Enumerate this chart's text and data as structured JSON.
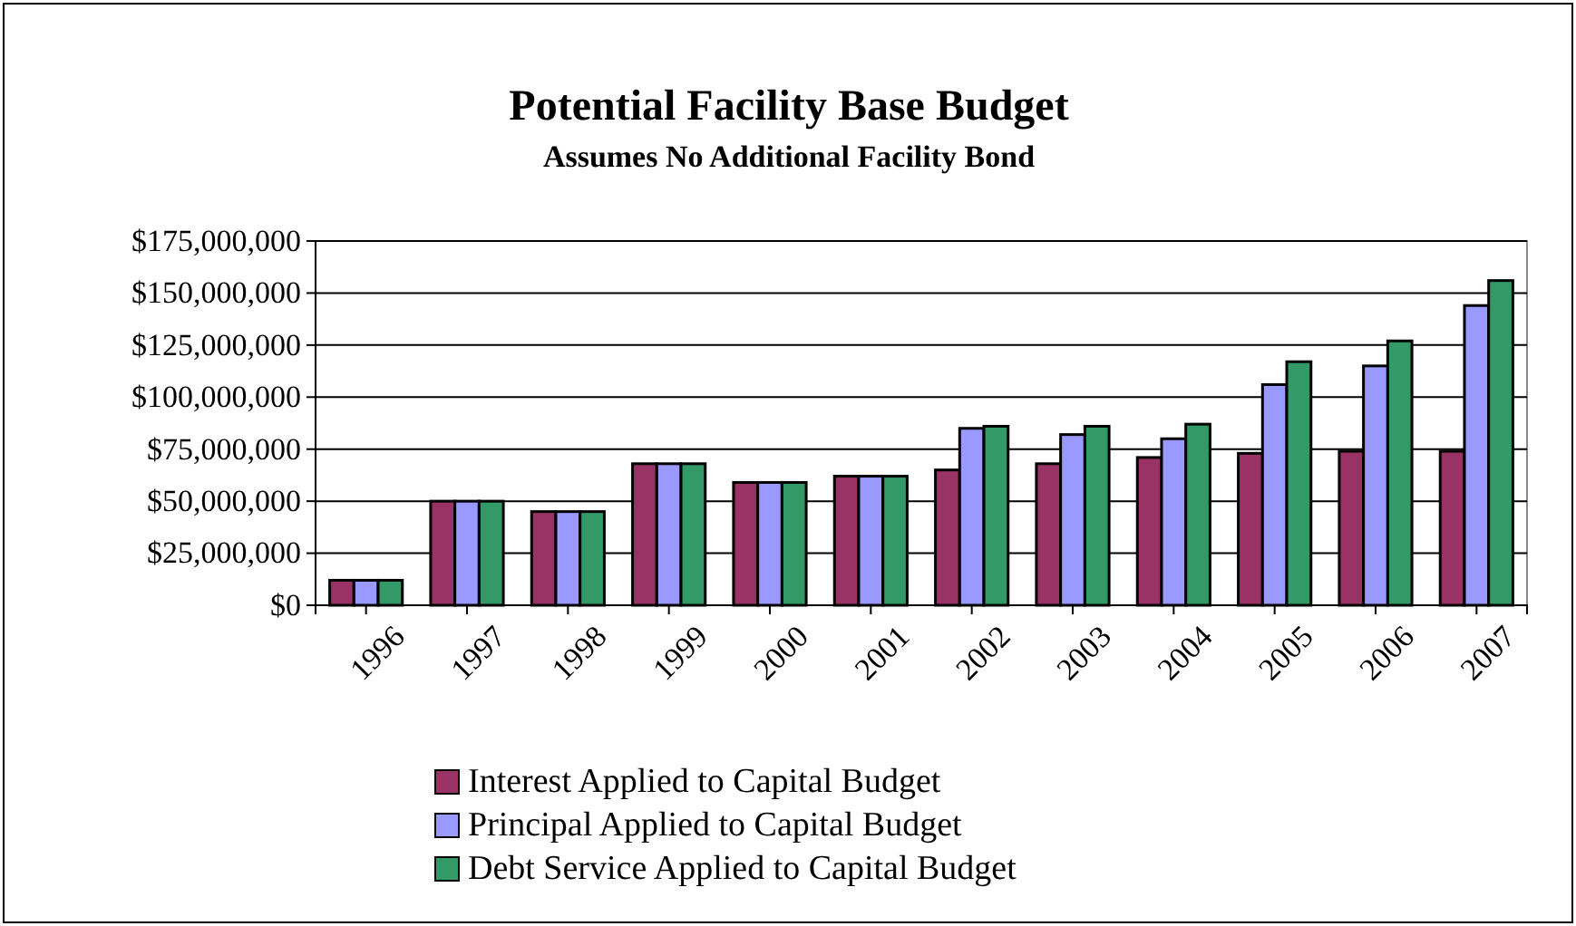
{
  "chart_data": {
    "type": "bar",
    "title": "Potential Facility Base Budget",
    "subtitle": "Assumes No Additional Facility Bond",
    "categories": [
      "1996",
      "1997",
      "1998",
      "1999",
      "2000",
      "2001",
      "2002",
      "2003",
      "2004",
      "2005",
      "2006",
      "2007"
    ],
    "series": [
      {
        "name": "Interest Applied to Capital Budget",
        "color": "#993366",
        "values": [
          12000000,
          50000000,
          45000000,
          68000000,
          59000000,
          62000000,
          65000000,
          68000000,
          71000000,
          73000000,
          74000000,
          74000000
        ]
      },
      {
        "name": "Principal Applied to Capital Budget",
        "color": "#9999ff",
        "values": [
          12000000,
          50000000,
          45000000,
          68000000,
          59000000,
          62000000,
          85000000,
          82000000,
          80000000,
          106000000,
          115000000,
          144000000
        ]
      },
      {
        "name": "Debt Service Applied to Capital Budget",
        "color": "#339966",
        "values": [
          12000000,
          50000000,
          45000000,
          68000000,
          59000000,
          62000000,
          86000000,
          86000000,
          87000000,
          117000000,
          127000000,
          156000000
        ]
      }
    ],
    "ylim": [
      0,
      175000000
    ],
    "yticks": [
      {
        "value": 0,
        "label": "$0"
      },
      {
        "value": 25000000,
        "label": "$25,000,000"
      },
      {
        "value": 50000000,
        "label": "$50,000,000"
      },
      {
        "value": 75000000,
        "label": "$75,000,000"
      },
      {
        "value": 100000000,
        "label": "$100,000,000"
      },
      {
        "value": 125000000,
        "label": "$125,000,000"
      },
      {
        "value": 150000000,
        "label": "$150,000,000"
      },
      {
        "value": 175000000,
        "label": "$175,000,000"
      }
    ],
    "grid": "y",
    "legend": "bottom"
  }
}
